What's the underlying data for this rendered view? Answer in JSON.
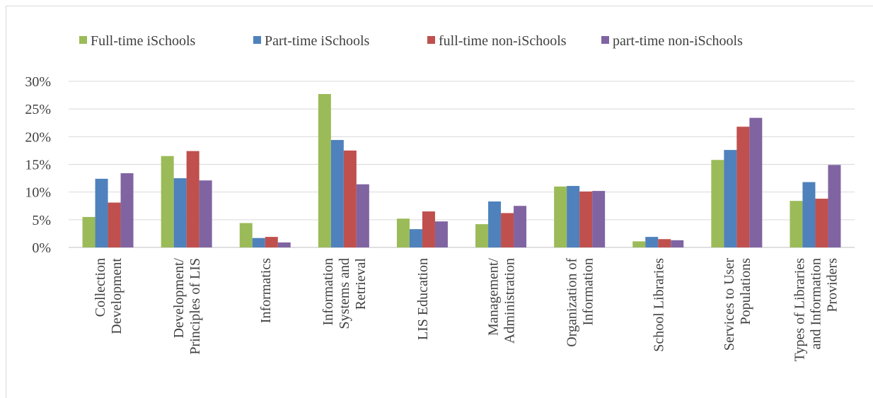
{
  "chart_data": {
    "type": "bar",
    "title": "",
    "xlabel": "",
    "ylabel": "",
    "ylim": [
      0,
      0.3
    ],
    "yticks": [
      "0%",
      "5%",
      "10%",
      "15%",
      "20%",
      "25%",
      "30%"
    ],
    "grid": true,
    "legend_position": "top",
    "categories": [
      [
        "Collection",
        "Development"
      ],
      [
        "Development/",
        "Principles of LIS"
      ],
      [
        "Informatics"
      ],
      [
        "Information",
        "Systems and",
        "Retrieval"
      ],
      [
        "LIS Education"
      ],
      [
        "Management/",
        "Administration"
      ],
      [
        "Organization of",
        "Information"
      ],
      [
        "School Libraries"
      ],
      [
        "Services to User",
        "Populations"
      ],
      [
        "Types of Libraries",
        "and Information",
        "Providers"
      ]
    ],
    "series": [
      {
        "name": "Full-time iSchools",
        "color": "#9bbb59",
        "values": [
          0.055,
          0.165,
          0.044,
          0.277,
          0.052,
          0.042,
          0.11,
          0.011,
          0.158,
          0.084
        ]
      },
      {
        "name": "Part-time iSchools",
        "color": "#4f81bd",
        "values": [
          0.124,
          0.125,
          0.017,
          0.194,
          0.033,
          0.083,
          0.111,
          0.019,
          0.176,
          0.118
        ]
      },
      {
        "name": "full-time non-iSchools",
        "color": "#c0504d",
        "values": [
          0.081,
          0.174,
          0.019,
          0.175,
          0.065,
          0.062,
          0.101,
          0.015,
          0.218,
          0.088
        ]
      },
      {
        "name": "part-time non-iSchools",
        "color": "#8064a2",
        "values": [
          0.134,
          0.121,
          0.009,
          0.114,
          0.047,
          0.075,
          0.102,
          0.013,
          0.234,
          0.149
        ]
      }
    ]
  }
}
